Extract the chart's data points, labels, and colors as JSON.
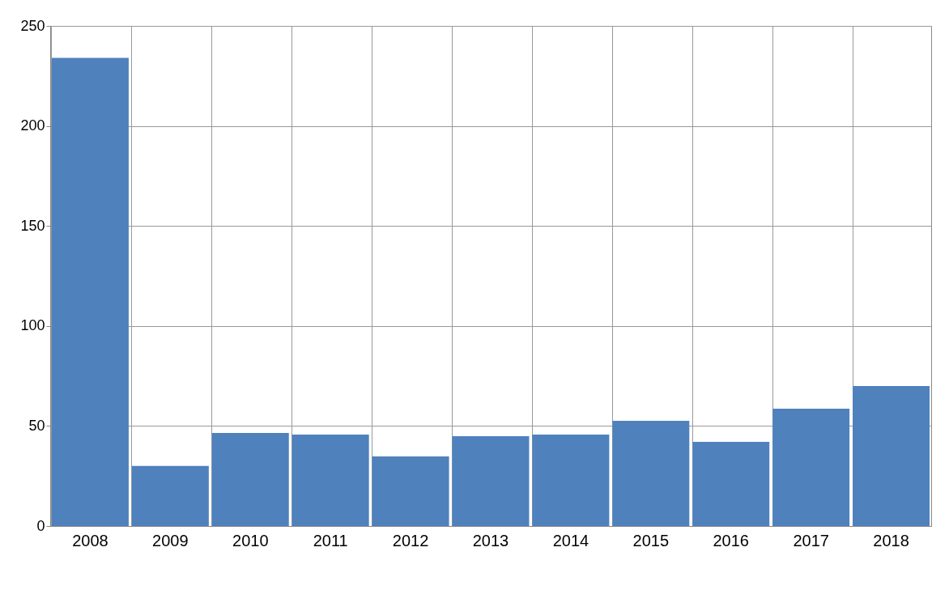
{
  "chart_data": {
    "type": "bar",
    "categories": [
      "2008",
      "2009",
      "2010",
      "2011",
      "2012",
      "2013",
      "2014",
      "2015",
      "2016",
      "2017",
      "2018"
    ],
    "values": [
      234,
      30,
      46.5,
      45.7,
      34.8,
      44.9,
      45.7,
      52.6,
      42.1,
      58.7,
      70
    ],
    "color": "#4f81bd",
    "ylim": [
      0,
      250
    ],
    "yticks": [
      0,
      50,
      100,
      150,
      200,
      250
    ],
    "grid": true
  }
}
